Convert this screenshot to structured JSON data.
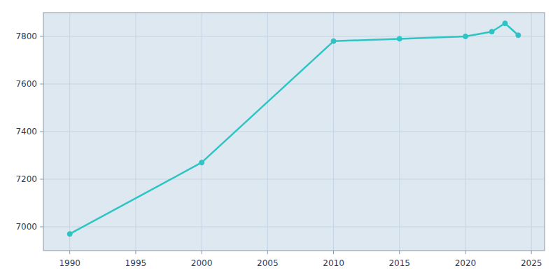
{
  "chart_data": {
    "type": "line",
    "x": [
      1990,
      2000,
      2010,
      2015,
      2020,
      2022,
      2023,
      2024
    ],
    "values": [
      6970,
      7270,
      7780,
      7790,
      7800,
      7820,
      7855,
      7805
    ],
    "color": "#2EC4C4",
    "marker": "circle",
    "xlim": [
      1988,
      2026
    ],
    "ylim": [
      6900,
      7900
    ],
    "xticks": [
      1990,
      1995,
      2000,
      2005,
      2010,
      2015,
      2020,
      2025
    ],
    "yticks": [
      7000,
      7200,
      7400,
      7600,
      7800
    ],
    "grid": true
  }
}
